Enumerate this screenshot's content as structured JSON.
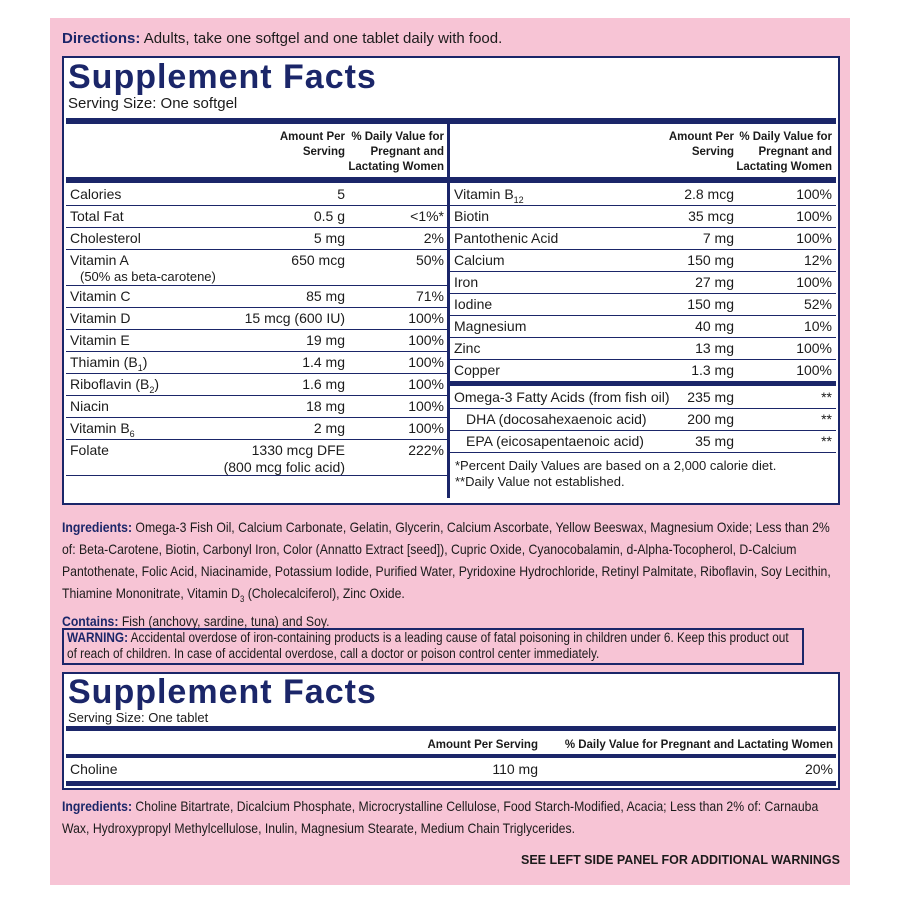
{
  "directions": {
    "label": "Directions:",
    "text": "Adults, take one softgel and one tablet daily with food."
  },
  "softgel_facts": {
    "title": "Supplement Facts",
    "serving_size": "Serving Size: One softgel",
    "column_headers": {
      "amount": "Amount Per Serving",
      "daily_value": "% Daily Value for Pregnant and Lactating Women"
    },
    "left_rows": [
      {
        "name": "Calories",
        "amount": "5"
      },
      {
        "name": "Total Fat",
        "amount": "0.5 g",
        "dv": "<1%*"
      },
      {
        "name": "Cholesterol",
        "amount": "5 mg",
        "dv": "2%"
      },
      {
        "name": "Vitamin A",
        "note": "(50% as beta-carotene)",
        "amount": "650 mcg",
        "dv": "50%"
      },
      {
        "name": "Vitamin C",
        "amount": "85 mg",
        "dv": "71%"
      },
      {
        "name": "Vitamin D",
        "amount": "15 mcg (600 IU)",
        "dv": "100%"
      },
      {
        "name": "Vitamin E",
        "amount": "19 mg",
        "dv": "100%"
      },
      {
        "name": "Thiamin (B",
        "sub": "1",
        "name_end": ")",
        "amount": "1.4 mg",
        "dv": "100%"
      },
      {
        "name": "Riboflavin (B",
        "sub": "2",
        "name_end": ")",
        "amount": "1.6 mg",
        "dv": "100%"
      },
      {
        "name": "Niacin",
        "amount": "18 mg",
        "dv": "100%"
      },
      {
        "name": "Vitamin B",
        "sub": "6",
        "amount": "2 mg",
        "dv": "100%"
      },
      {
        "name": "Folate",
        "amount": "1330 mcg DFE",
        "amount_note": "(800 mcg folic acid)",
        "dv": "222%"
      }
    ],
    "right_rows": [
      {
        "name": "Vitamin B",
        "sub": "12",
        "amount": "2.8 mcg",
        "dv": "100%"
      },
      {
        "name": "Biotin",
        "amount": "35 mcg",
        "dv": "100%"
      },
      {
        "name": "Pantothenic Acid",
        "amount": "7 mg",
        "dv": "100%"
      },
      {
        "name": "Calcium",
        "amount": "150 mg",
        "dv": "12%"
      },
      {
        "name": "Iron",
        "amount": "27 mg",
        "dv": "100%"
      },
      {
        "name": "Iodine",
        "amount": "150 mg",
        "dv": "52%"
      },
      {
        "name": "Magnesium",
        "amount": "40 mg",
        "dv": "10%"
      },
      {
        "name": "Zinc",
        "amount": "13 mg",
        "dv": "100%"
      },
      {
        "name": "Copper",
        "amount": "1.3 mg",
        "dv": "100%"
      }
    ],
    "fatty_acid_rows": [
      {
        "name": "Omega-3 Fatty Acids (from fish oil)",
        "amount": "235 mg",
        "dv": "**"
      },
      {
        "name": "DHA (docosahexaenoic acid)",
        "amount": "200 mg",
        "dv": "**"
      },
      {
        "name": "EPA (eicosapentaenoic acid)",
        "amount": "35 mg",
        "dv": "**"
      }
    ],
    "footnotes": [
      "*Percent Daily Values are based on a 2,000 calorie diet.",
      "**Daily Value not established."
    ]
  },
  "ingredients": {
    "label": "Ingredients:",
    "text": "Omega-3 Fish Oil, Calcium Carbonate, Gelatin, Glycerin, Calcium Ascorbate, Yellow Beeswax, Magnesium Oxide; Less than 2% of: Beta-Carotene, Biotin, Carbonyl Iron, Color (Annatto Extract [seed]), Cupric Oxide, Cyanocobalamin, d-Alpha-Tocopherol, D-Calcium Pantothenate, Folic Acid, Niacinamide, Potassium Iodide, Purified Water, Pyridoxine Hydrochloride, Retinyl Palmitate, Riboflavin, Soy Lecithin, Thiamine Mononitrate, Vitamin D",
    "sub": "3",
    "text_end": " (Cholecalciferol), Zinc Oxide."
  },
  "contains": {
    "label": "Contains:",
    "text": "Fish (anchovy, sardine, tuna) and Soy."
  },
  "warning": {
    "label": "WARNING:",
    "text": "Accidental overdose of iron-containing products is a leading cause of fatal poisoning in children under 6. Keep this product out of reach of children. In case of accidental overdose, call a doctor or poison control center immediately."
  },
  "tablet_facts": {
    "title": "Supplement Facts",
    "serving_size": "Serving Size: One tablet",
    "column_headers": {
      "amount": "Amount Per Serving",
      "daily_value": "% Daily Value for Pregnant and Lactating Women"
    },
    "rows": [
      {
        "name": "Choline",
        "amount": "110 mg",
        "dv": "20%"
      }
    ]
  },
  "tablet_ingredients": {
    "label": "Ingredients:",
    "text": "Choline Bitartrate, Dicalcium Phosphate, Microcrystalline Cellulose, Food Starch-Modified, Acacia; Less than 2% of: Carnauba Wax, Hydroxypropyl Methylcellulose, Inulin, Magnesium Stearate, Medium Chain Triglycerides."
  },
  "footer": "SEE LEFT SIDE PANEL FOR ADDITIONAL WARNINGS"
}
